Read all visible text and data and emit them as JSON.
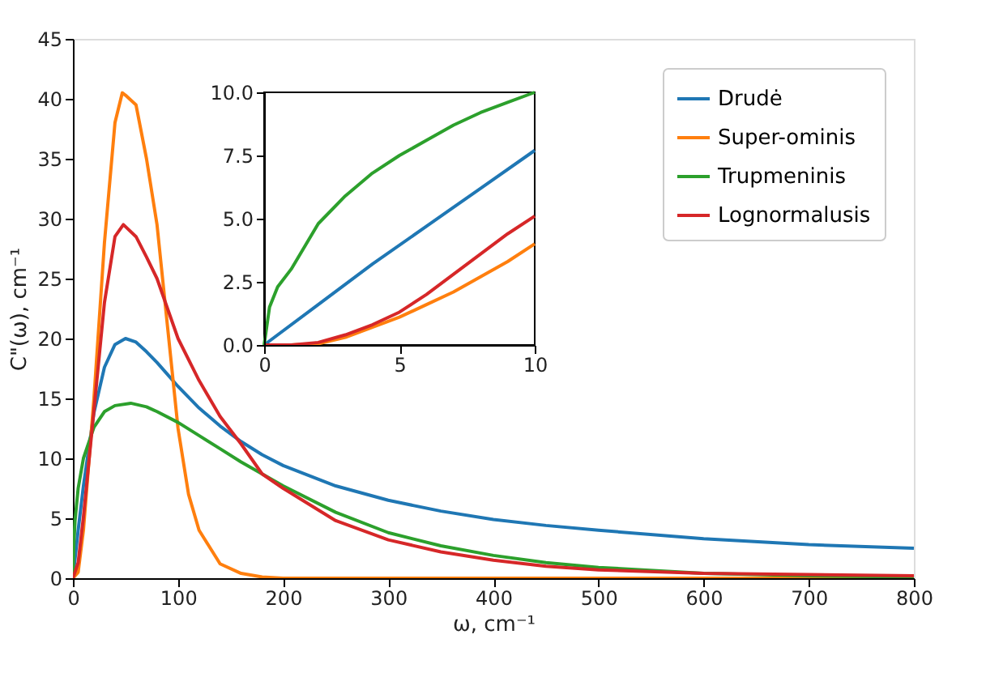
{
  "chart_data": [
    {
      "type": "line",
      "xlabel": "ω, cm⁻¹",
      "ylabel": "C\"(ω), cm⁻¹",
      "xlim": [
        0,
        800
      ],
      "ylim": [
        0,
        45
      ],
      "xticks": [
        0,
        100,
        200,
        300,
        400,
        500,
        600,
        700,
        800
      ],
      "yticks": [
        0,
        5,
        10,
        15,
        20,
        25,
        30,
        35,
        40,
        45
      ],
      "grid": false,
      "legend": "top right",
      "marker": "none",
      "line_style": "solid",
      "series": [
        {
          "name": "Drudė",
          "color": "#1f77b4",
          "x": [
            0,
            5,
            10,
            20,
            30,
            40,
            50,
            60,
            70,
            80,
            90,
            100,
            120,
            140,
            160,
            180,
            200,
            250,
            300,
            350,
            400,
            450,
            500,
            600,
            700,
            800
          ],
          "values": [
            0,
            4.0,
            7.7,
            13.8,
            17.6,
            19.5,
            20.0,
            19.7,
            18.9,
            18.0,
            17.0,
            16.0,
            14.2,
            12.7,
            11.4,
            10.3,
            9.4,
            7.7,
            6.5,
            5.6,
            4.9,
            4.4,
            4.0,
            3.3,
            2.8,
            2.5
          ]
        },
        {
          "name": "Super-ominis",
          "color": "#ff7f0e",
          "x": [
            0,
            5,
            10,
            20,
            30,
            40,
            47,
            50,
            60,
            70,
            80,
            90,
            100,
            110,
            120,
            140,
            160,
            180,
            200,
            300,
            400,
            500,
            600,
            700,
            800
          ],
          "values": [
            0,
            0.5,
            4.0,
            15.0,
            28.0,
            38.0,
            40.5,
            40.3,
            39.5,
            35.0,
            29.5,
            21.0,
            12.5,
            7.0,
            4.0,
            1.2,
            0.4,
            0.1,
            0,
            0,
            0,
            0,
            0,
            0,
            0
          ]
        },
        {
          "name": "Trupmeninis",
          "color": "#2ca02c",
          "x": [
            0,
            1,
            2,
            5,
            10,
            20,
            30,
            40,
            55,
            70,
            80,
            100,
            120,
            140,
            160,
            180,
            200,
            250,
            300,
            350,
            400,
            450,
            500,
            600,
            700,
            800
          ],
          "values": [
            0,
            3.0,
            4.8,
            7.5,
            10.0,
            12.6,
            13.9,
            14.4,
            14.6,
            14.3,
            13.9,
            13.0,
            11.9,
            10.8,
            9.7,
            8.7,
            7.7,
            5.5,
            3.8,
            2.7,
            1.9,
            1.3,
            0.9,
            0.4,
            0.2,
            0.1
          ]
        },
        {
          "name": "Lognormalusis",
          "color": "#d62728",
          "x": [
            0,
            5,
            10,
            20,
            30,
            40,
            48,
            60,
            70,
            80,
            100,
            120,
            140,
            160,
            180,
            200,
            250,
            300,
            350,
            400,
            450,
            500,
            600,
            700,
            800
          ],
          "values": [
            0,
            1.3,
            5.1,
            14.0,
            23.0,
            28.5,
            29.5,
            28.5,
            26.8,
            25.0,
            20.0,
            16.5,
            13.5,
            11.2,
            8.7,
            7.5,
            4.8,
            3.2,
            2.2,
            1.5,
            1.0,
            0.7,
            0.4,
            0.3,
            0.2
          ]
        }
      ]
    },
    {
      "type": "line",
      "xlim": [
        0,
        10
      ],
      "ylim": [
        0,
        10
      ],
      "xticks": [
        0,
        5,
        10
      ],
      "yticks": [
        {
          "value": 0,
          "label": "0.0"
        },
        {
          "value": 2.5,
          "label": "2.5"
        },
        {
          "value": 5,
          "label": "5.0"
        },
        {
          "value": 7.5,
          "label": "7.5"
        },
        {
          "value": 10,
          "label": "10.0"
        }
      ],
      "grid": false,
      "marker": "none",
      "line_style": "solid",
      "series": [
        {
          "color": "#1f77b4",
          "x": [
            0,
            2,
            4,
            6,
            8,
            10
          ],
          "values": [
            0,
            1.6,
            3.2,
            4.7,
            6.2,
            7.7
          ]
        },
        {
          "color": "#ff7f0e",
          "x": [
            0,
            1,
            2,
            3,
            4,
            5,
            6,
            7,
            8,
            9,
            10
          ],
          "values": [
            0,
            0,
            0.05,
            0.3,
            0.7,
            1.1,
            1.6,
            2.1,
            2.7,
            3.3,
            4.0
          ]
        },
        {
          "color": "#2ca02c",
          "x": [
            0,
            0.2,
            0.5,
            1,
            2,
            3,
            4,
            5,
            6,
            7,
            8,
            9,
            10
          ],
          "values": [
            0,
            1.5,
            2.3,
            3.0,
            4.8,
            5.9,
            6.8,
            7.5,
            8.1,
            8.7,
            9.2,
            9.6,
            10.0
          ]
        },
        {
          "color": "#d62728",
          "x": [
            0,
            1,
            2,
            3,
            4,
            5,
            6,
            7,
            8,
            9,
            10
          ],
          "values": [
            0,
            0,
            0.1,
            0.4,
            0.8,
            1.3,
            2.0,
            2.8,
            3.6,
            4.4,
            5.1
          ]
        }
      ]
    }
  ]
}
